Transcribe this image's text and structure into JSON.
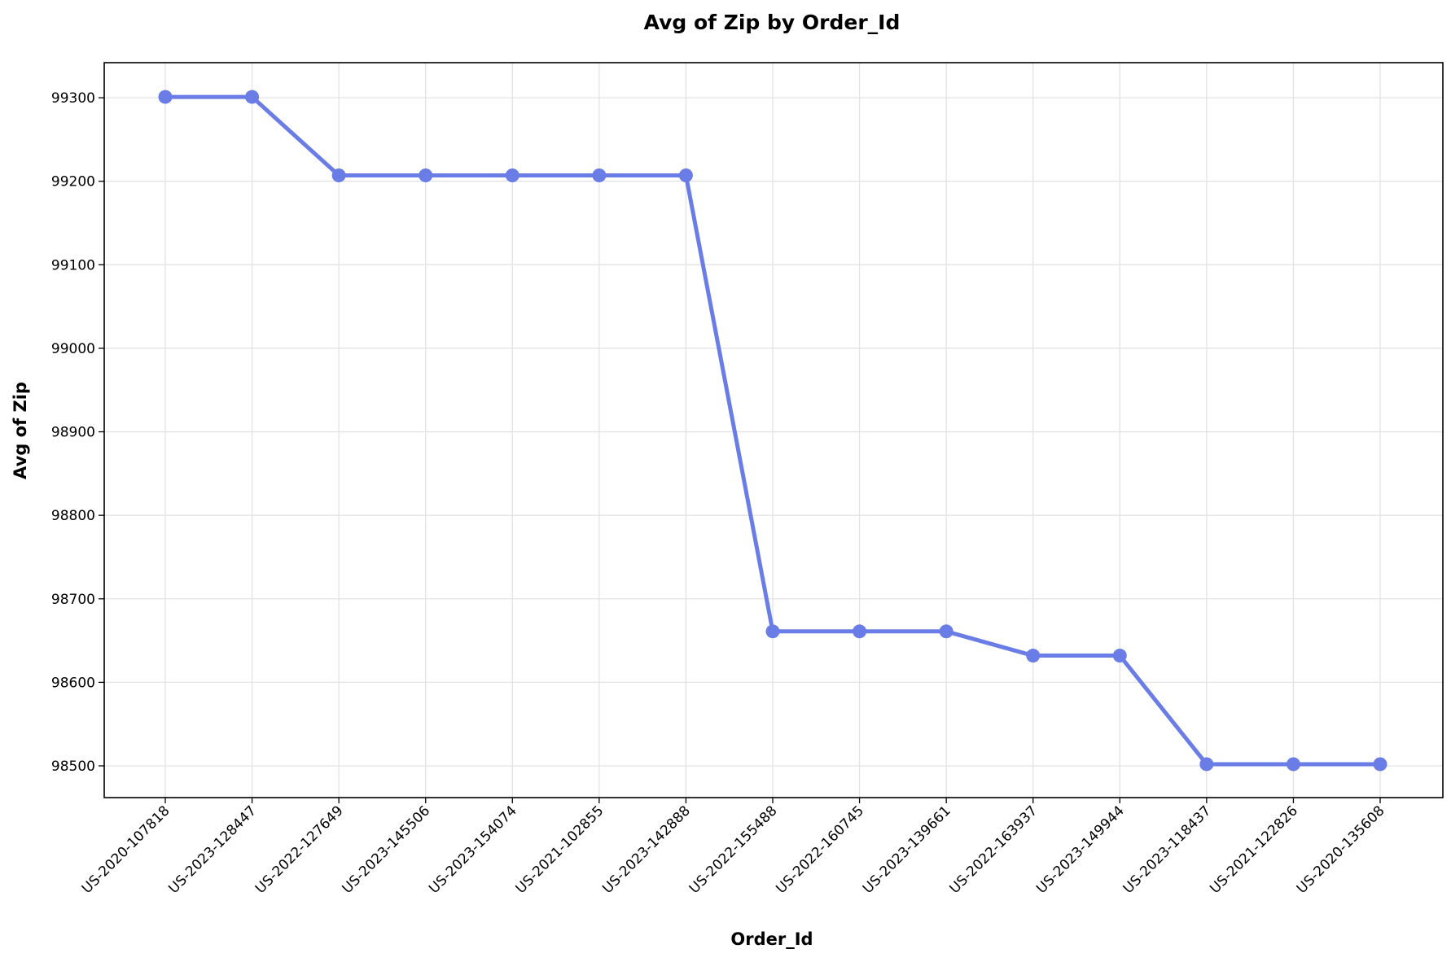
{
  "chart_data": {
    "type": "line",
    "title": "Avg of Zip by Order_Id",
    "xlabel": "Order_Id",
    "ylabel": "Avg of Zip",
    "categories": [
      "US-2020-107818",
      "US-2023-128447",
      "US-2022-127649",
      "US-2023-145506",
      "US-2023-154074",
      "US-2021-102855",
      "US-2023-142888",
      "US-2022-155488",
      "US-2022-160745",
      "US-2023-139661",
      "US-2022-163937",
      "US-2023-149944",
      "US-2023-118437",
      "US-2021-122826",
      "US-2020-135608"
    ],
    "series": [
      {
        "values": [
          99301,
          99301,
          99207,
          99207,
          99207,
          99207,
          99207,
          98661,
          98661,
          98661,
          98632,
          98632,
          98502,
          98502,
          98502
        ],
        "color": "#6a7de6"
      }
    ],
    "yticks": [
      98500,
      98600,
      98700,
      98800,
      98900,
      99000,
      99100,
      99200,
      99300
    ],
    "ylim": [
      98462,
      99342
    ],
    "grid": true,
    "legend": "none"
  }
}
